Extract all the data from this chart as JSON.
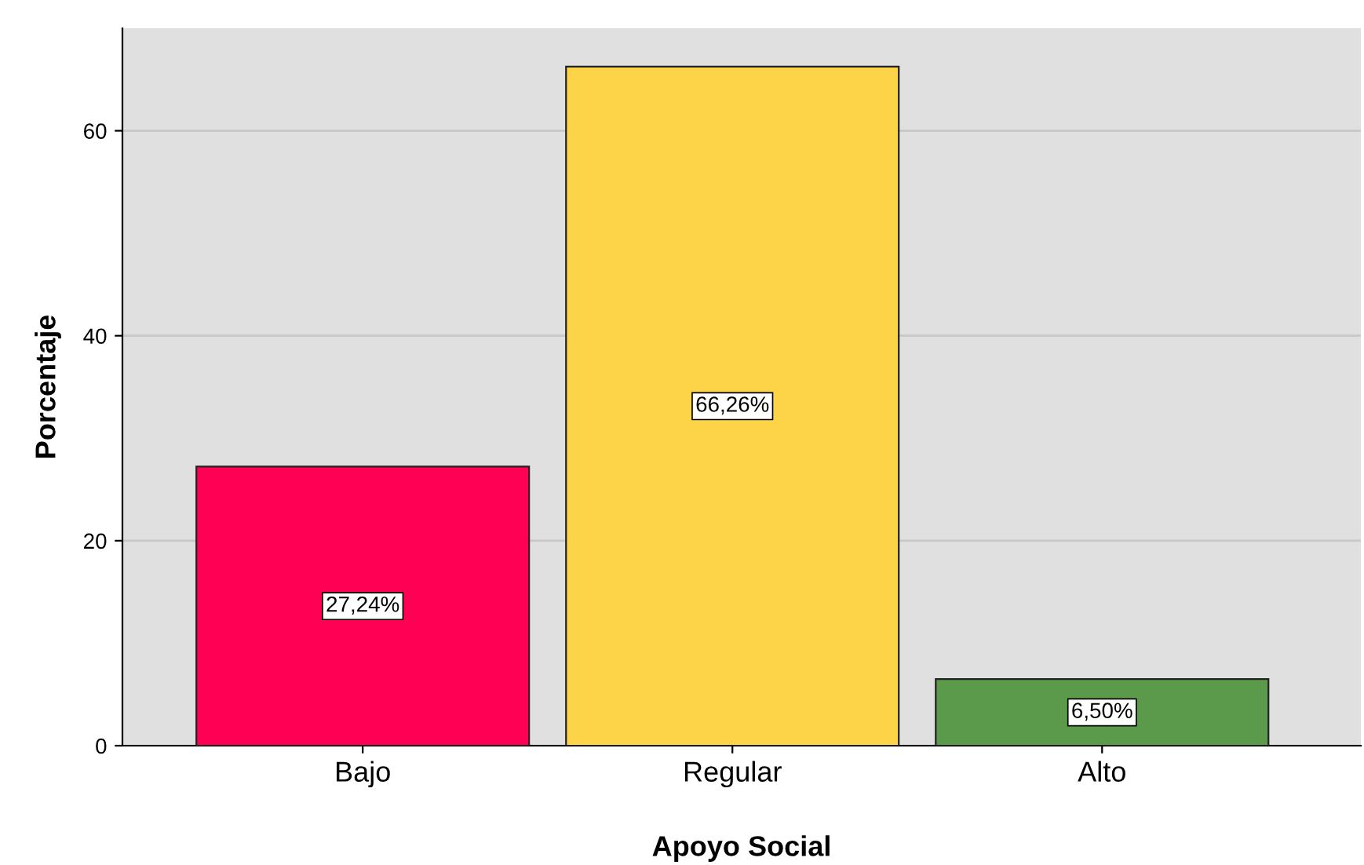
{
  "chart_data": {
    "type": "bar",
    "xlabel": "Apoyo Social",
    "ylabel": "Porcentaje",
    "categories": [
      "Bajo",
      "Regular",
      "Alto"
    ],
    "values": [
      27.24,
      66.26,
      6.5
    ],
    "colors": [
      "#ff0055",
      "#fdd447",
      "#5a9a4a"
    ],
    "value_labels": [
      "27,24%",
      "66,26%",
      "6,50%"
    ],
    "ylim": [
      0,
      70
    ],
    "yticks": [
      0,
      20,
      40,
      60
    ],
    "grid": "y"
  }
}
